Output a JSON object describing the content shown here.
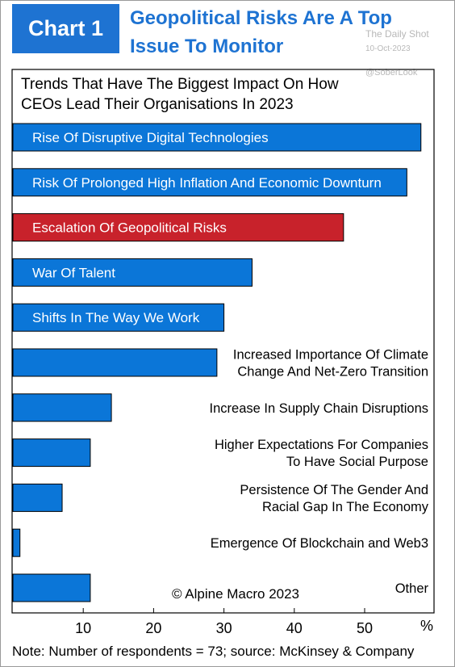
{
  "header": {
    "badge": "Chart 1",
    "title_line1": "Geopolitical Risks Are A Top",
    "title_line2": "Issue To Monitor"
  },
  "watermark": {
    "source": "The Daily Shot",
    "date": "10-Oct-2023",
    "handle": "@SoberLook"
  },
  "note": "Note: Number of respondents = 73; source: McKinsey & Company",
  "colors": {
    "accent": "#1e73d2",
    "bar": "#0b76d8",
    "highlight": "#c8222b"
  },
  "chart_data": {
    "type": "bar",
    "orientation": "horizontal",
    "title": "Trends That Have The Biggest Impact On How CEOs Lead Their Organisations In 2023",
    "title_lines": [
      "Trends That Have The Biggest Impact On How",
      "CEOs Lead Their Organisations In 2023"
    ],
    "categories": [
      [
        "Rise Of Disruptive Digital Technologies"
      ],
      [
        "Risk Of Prolonged High Inflation And Economic Downturn"
      ],
      [
        "Escalation Of Geopolitical Risks"
      ],
      [
        "War Of Talent"
      ],
      [
        "Shifts In The Way We Work"
      ],
      [
        "Increased Importance Of Climate",
        "Change And Net-Zero Transition"
      ],
      [
        "Increase In Supply Chain Disruptions"
      ],
      [
        "Higher Expectations For Companies",
        "To Have Social Purpose"
      ],
      [
        "Persistence Of The Gender And",
        "Racial Gap In The Economy"
      ],
      [
        "Emergence Of Blockchain and Web3"
      ],
      [
        "Other"
      ]
    ],
    "values": [
      58,
      56,
      47,
      34,
      30,
      29,
      14,
      11,
      7,
      1,
      11
    ],
    "highlight_index": 2,
    "label_inside": [
      true,
      true,
      true,
      true,
      true,
      false,
      false,
      false,
      false,
      false,
      false
    ],
    "xlim": [
      0,
      60
    ],
    "xticks": [
      10,
      20,
      30,
      40,
      50
    ],
    "xunit": "%",
    "annotation": "© Alpine Macro 2023"
  }
}
